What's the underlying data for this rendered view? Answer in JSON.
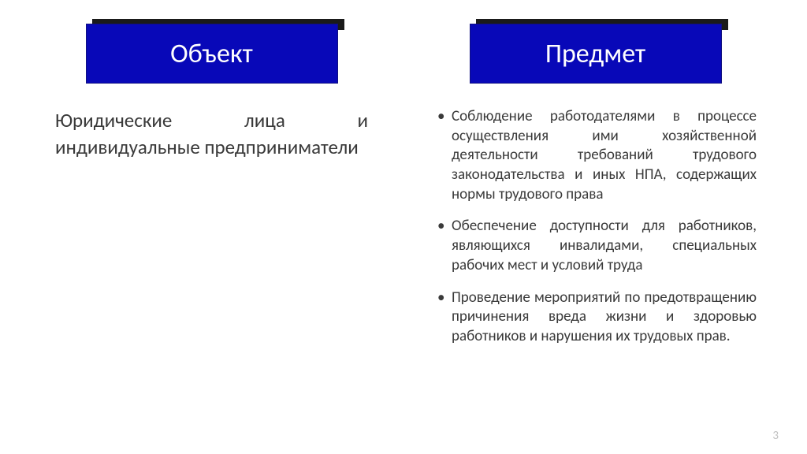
{
  "left": {
    "header": "Объект",
    "body": "Юридические лица и индивидуальные предприниматели"
  },
  "right": {
    "header": "Предмет",
    "items": [
      "Соблюдение работодателями в процессе осуществления ими хозяйственной деятельности требований трудового законодательства и иных НПА, содержащих нормы трудового права",
      "Обеспечение доступности для работников, являющихся инвалидами, специальных рабочих мест и условий труда",
      "Проведение мероприятий по предотвращению причинения вреда жизни и здоровью работников и нарушения их трудовых прав."
    ]
  },
  "page_number": "3",
  "colors": {
    "header_bg": "#0808b8",
    "header_shadow": "#1a1a1a",
    "header_text": "#ffffff",
    "body_text": "#3a3a3a",
    "page_number": "#bfbfbf",
    "background": "#ffffff"
  },
  "typography": {
    "header_fontsize": 34,
    "left_body_fontsize": 25,
    "list_fontsize": 19,
    "page_number_fontsize": 15,
    "font_family": "Calibri"
  },
  "layout": {
    "slide_width": 1024,
    "slide_height": 576,
    "header_box_width": 320,
    "header_box_height": 76
  }
}
